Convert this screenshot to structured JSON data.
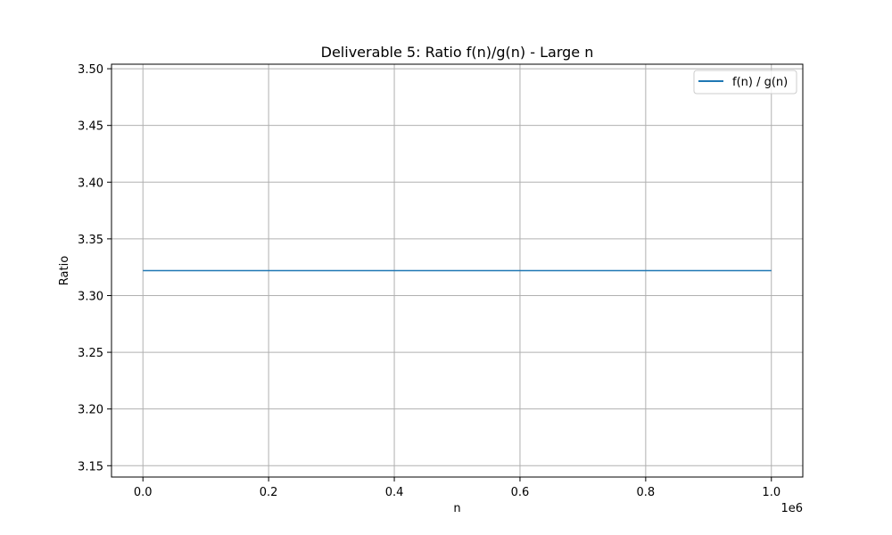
{
  "chart_data": {
    "type": "line",
    "title": "Deliverable 5: Ratio f(n)/g(n) - Large n",
    "xlabel": "n",
    "ylabel": "Ratio",
    "x_offset_label": "1e6",
    "xlim": [
      -50000,
      1050000
    ],
    "ylim": [
      3.14,
      3.504
    ],
    "x_ticks": [
      0,
      200000,
      400000,
      600000,
      800000,
      1000000
    ],
    "x_tick_labels": [
      "0.0",
      "0.2",
      "0.4",
      "0.6",
      "0.8",
      "1.0"
    ],
    "y_ticks": [
      3.15,
      3.2,
      3.25,
      3.3,
      3.35,
      3.4,
      3.45,
      3.5
    ],
    "y_tick_labels": [
      "3.15",
      "3.20",
      "3.25",
      "3.30",
      "3.35",
      "3.40",
      "3.45",
      "3.50"
    ],
    "grid": true,
    "legend_position": "top-right",
    "series": [
      {
        "name": "f(n) / g(n)",
        "color": "#1f77b4",
        "x": [
          1,
          1000000
        ],
        "y": [
          3.322,
          3.322
        ]
      }
    ]
  }
}
